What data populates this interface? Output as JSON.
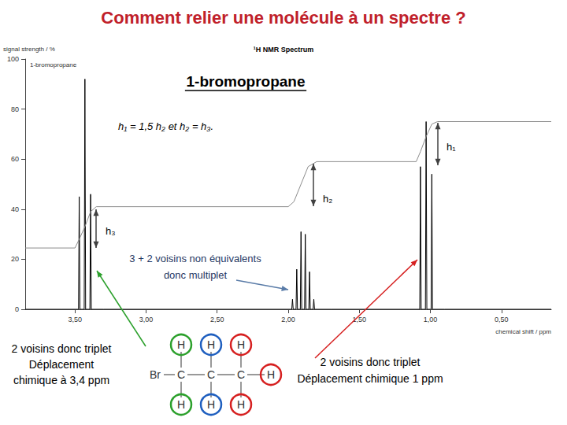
{
  "header": {
    "title": "Comment relier une molécule à un spectre ?",
    "heading": "1-bromopropane"
  },
  "chart_data": {
    "type": "line",
    "title": "¹H NMR Spectrum",
    "subtitle": "1-bromopropane",
    "xlabel": "chemical shift / ppm",
    "ylabel": "signal strength / %",
    "xlim": [
      3.85,
      0.15
    ],
    "xticks": [
      {
        "value": 3.5,
        "label": "3,50"
      },
      {
        "value": 3.0,
        "label": "3,00"
      },
      {
        "value": 2.5,
        "label": "2,50"
      },
      {
        "value": 2.0,
        "label": "2,00"
      },
      {
        "value": 1.5,
        "label": "1,50"
      },
      {
        "value": 1.0,
        "label": "1,00"
      },
      {
        "value": 0.5,
        "label": "0,50"
      }
    ],
    "ylim": [
      0,
      100
    ],
    "yticks": [
      0,
      20,
      40,
      60,
      80,
      100
    ],
    "grid": false,
    "series": [
      {
        "color": "#000000",
        "x": [
          3.85,
          3.6,
          3.475,
          3.47,
          3.465,
          3.435,
          3.43,
          3.425,
          3.395,
          3.39,
          3.385,
          3.3,
          2.0,
          1.975,
          1.97,
          1.965,
          1.945,
          1.94,
          1.935,
          1.915,
          1.91,
          1.905,
          1.885,
          1.88,
          1.875,
          1.855,
          1.85,
          1.845,
          1.825,
          1.82,
          1.815,
          1.7,
          1.075,
          1.07,
          1.065,
          1.035,
          1.03,
          1.025,
          0.995,
          0.99,
          0.985,
          0.9,
          0.15
        ],
        "values": [
          0,
          0,
          0,
          45,
          0,
          0,
          92,
          0,
          0,
          46,
          0,
          0,
          0,
          0,
          4,
          0,
          0,
          16,
          0,
          0,
          31,
          0,
          0,
          30,
          0,
          0,
          15,
          0,
          0,
          4,
          0,
          0,
          0,
          57,
          0,
          0,
          75,
          0,
          0,
          54,
          0,
          0,
          0
        ]
      },
      {
        "color": "#8c8c8c",
        "x": [
          3.85,
          3.5,
          3.47,
          3.43,
          3.39,
          3.35,
          2.0,
          1.96,
          1.91,
          1.86,
          1.8,
          1.1,
          1.07,
          1.03,
          0.99,
          0.95,
          0.15
        ],
        "values": [
          24.5,
          24.5,
          28,
          33,
          39,
          41,
          41,
          43,
          50,
          57,
          59,
          59,
          63,
          69,
          74,
          75,
          75
        ]
      }
    ]
  },
  "annotations": {
    "relation": "h₁ = 1,5 h₂ et h₂ = h₃.",
    "h1": "h₁",
    "h2": "h₂",
    "h3": "h₃",
    "multiplet": [
      "3 + 2 voisins non équivalents",
      "donc multiplet"
    ],
    "ch2br": [
      "2 voisins donc triplet",
      "Déplacement",
      "chimique à 3,4 ppm"
    ],
    "ch3": [
      "2 voisins donc triplet",
      "Déplacement chimique 1 ppm"
    ]
  },
  "molecule": {
    "substituent": "Br",
    "carbons": [
      {
        "label": "C",
        "hydrogens": [
          "H",
          "H"
        ],
        "color": "#2ca02c"
      },
      {
        "label": "C",
        "hydrogens": [
          "H",
          "H"
        ],
        "color": "#1f5fbf"
      },
      {
        "label": "C",
        "hydrogens": [
          "H",
          "H",
          "H"
        ],
        "color": "#d62020"
      }
    ]
  }
}
